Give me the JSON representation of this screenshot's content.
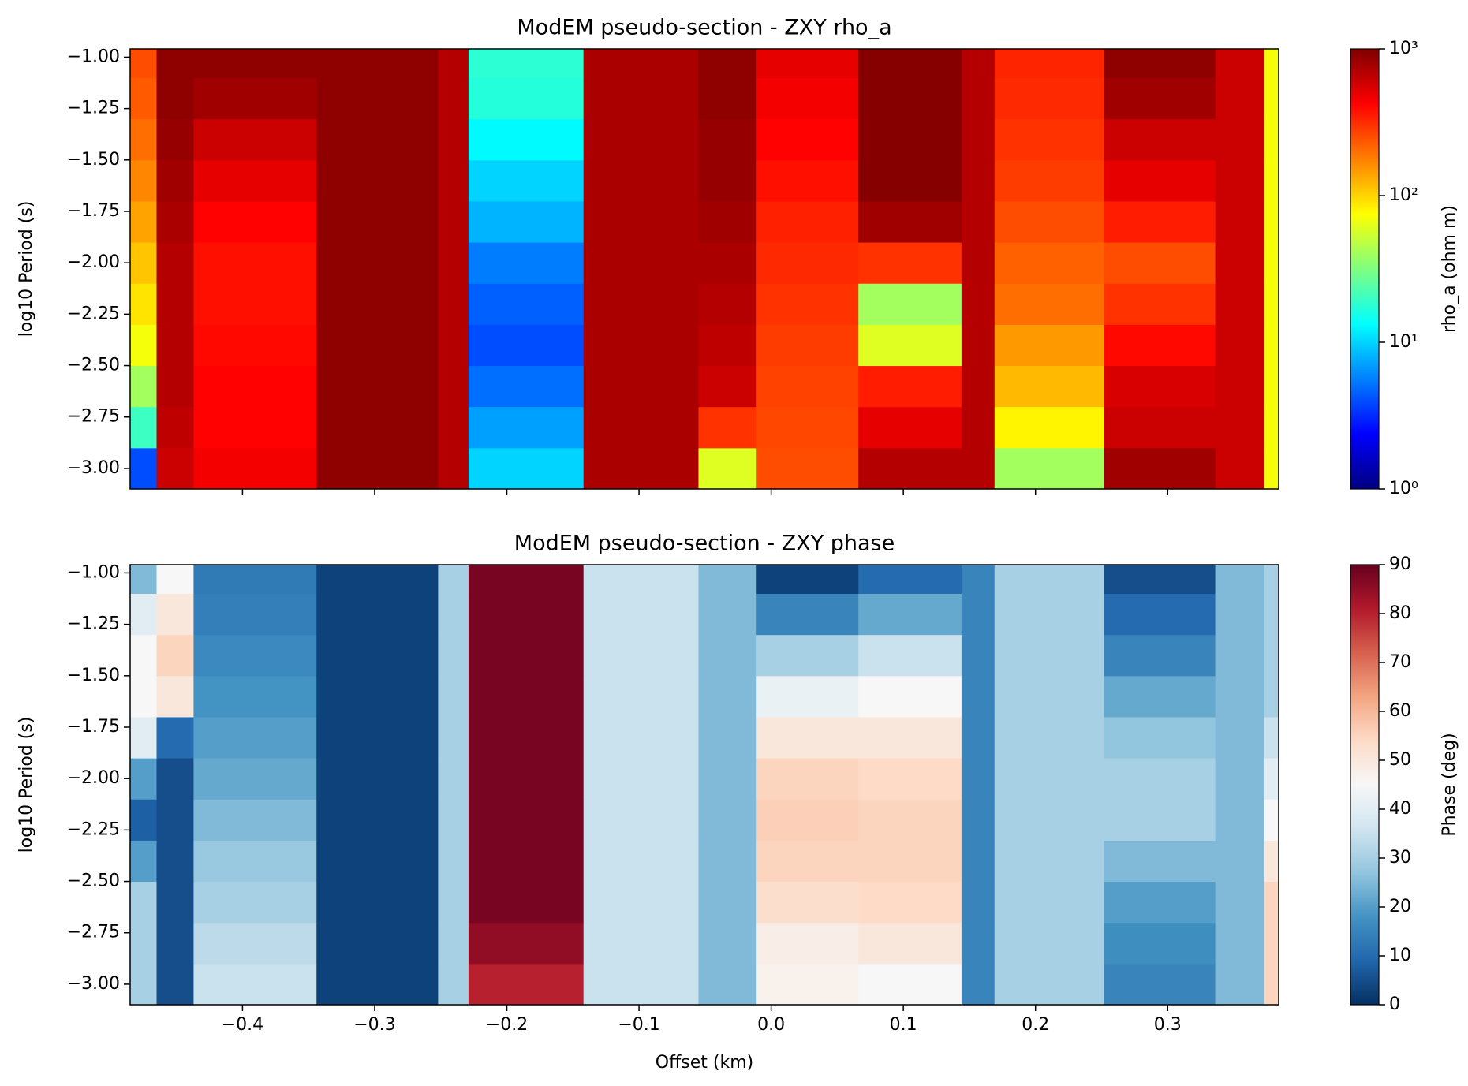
{
  "chart_data": [
    {
      "type": "heatmap",
      "title": "ModEM pseudo-section - ZXY rho_a",
      "ylabel": "log10 Period (s)",
      "x_edges": [
        -0.485,
        -0.465,
        -0.437,
        -0.344,
        -0.252,
        -0.229,
        -0.142,
        -0.055,
        -0.011,
        0.066,
        0.144,
        0.169,
        0.252,
        0.336,
        0.373,
        0.384
      ],
      "y_edges": [
        -3.1,
        -2.9,
        -2.7,
        -2.5,
        -2.3,
        -2.1,
        -1.9,
        -1.7,
        -1.5,
        -1.3,
        -1.1,
        -0.96
      ],
      "z": [
        [
          4,
          600,
          450,
          900,
          700,
          10,
          750,
          60,
          250,
          700,
          700,
          40,
          800,
          600,
          70
        ],
        [
          20,
          650,
          420,
          900,
          700,
          7,
          750,
          300,
          260,
          500,
          700,
          80,
          600,
          600,
          70
        ],
        [
          40,
          700,
          420,
          900,
          700,
          5,
          750,
          600,
          270,
          350,
          700,
          120,
          550,
          600,
          70
        ],
        [
          70,
          700,
          400,
          900,
          700,
          4,
          750,
          650,
          280,
          60,
          700,
          150,
          400,
          600,
          70
        ],
        [
          90,
          700,
          380,
          900,
          700,
          4.5,
          750,
          700,
          300,
          40,
          700,
          200,
          300,
          600,
          70
        ],
        [
          110,
          700,
          380,
          900,
          700,
          5.5,
          750,
          750,
          320,
          300,
          700,
          220,
          250,
          600,
          70
        ],
        [
          140,
          750,
          420,
          900,
          700,
          8,
          750,
          800,
          340,
          800,
          700,
          250,
          350,
          600,
          70
        ],
        [
          170,
          800,
          500,
          900,
          700,
          10,
          750,
          850,
          380,
          950,
          700,
          280,
          500,
          600,
          70
        ],
        [
          200,
          850,
          600,
          900,
          700,
          13,
          750,
          850,
          420,
          950,
          700,
          300,
          600,
          600,
          70
        ],
        [
          230,
          900,
          800,
          900,
          700,
          17,
          750,
          900,
          450,
          950,
          700,
          320,
          800,
          600,
          70
        ],
        [
          250,
          900,
          900,
          900,
          700,
          18,
          750,
          900,
          500,
          950,
          700,
          330,
          900,
          600,
          70
        ]
      ],
      "xlim": [
        -0.485,
        0.384
      ],
      "ylim": [
        -3.1,
        -0.96
      ],
      "yticks": [
        {
          "value": -3.0,
          "label": "−3.00"
        },
        {
          "value": -2.75,
          "label": "−2.75"
        },
        {
          "value": -2.5,
          "label": "−2.50"
        },
        {
          "value": -2.25,
          "label": "−2.25"
        },
        {
          "value": -2.0,
          "label": "−2.00"
        },
        {
          "value": -1.75,
          "label": "−1.75"
        },
        {
          "value": -1.5,
          "label": "−1.50"
        },
        {
          "value": -1.25,
          "label": "−1.25"
        },
        {
          "value": -1.0,
          "label": "−1.00"
        }
      ],
      "colorbar": {
        "label": "rho_a (ohm m)",
        "cmap": "jet",
        "log": true,
        "clim": [
          1,
          1000
        ],
        "ticks": [
          {
            "value": 1,
            "label": "10⁰"
          },
          {
            "value": 10,
            "label": "10¹"
          },
          {
            "value": 100,
            "label": "10²"
          },
          {
            "value": 1000,
            "label": "10³"
          }
        ]
      }
    },
    {
      "type": "heatmap",
      "title": "ModEM pseudo-section - ZXY phase",
      "ylabel": "log10 Period (s)",
      "xlabel": "Offset (km)",
      "x_edges": [
        -0.485,
        -0.465,
        -0.437,
        -0.344,
        -0.252,
        -0.229,
        -0.142,
        -0.055,
        -0.011,
        0.066,
        0.144,
        0.169,
        0.252,
        0.336,
        0.373,
        0.384
      ],
      "y_edges": [
        -3.1,
        -2.9,
        -2.7,
        -2.5,
        -2.3,
        -2.1,
        -1.9,
        -1.7,
        -1.5,
        -1.3,
        -1.1,
        -0.96
      ],
      "z": [
        [
          30,
          5,
          35,
          3,
          30,
          80,
          35,
          25,
          47,
          45,
          15,
          30,
          15,
          25,
          55
        ],
        [
          30,
          5,
          33,
          3,
          30,
          85,
          35,
          25,
          48,
          50,
          15,
          30,
          17,
          25,
          55
        ],
        [
          30,
          5,
          30,
          3,
          30,
          88,
          35,
          25,
          53,
          54,
          15,
          30,
          20,
          25,
          55
        ],
        [
          20,
          5,
          28,
          3,
          30,
          88,
          35,
          25,
          55,
          55,
          15,
          30,
          25,
          25,
          50
        ],
        [
          8,
          5,
          25,
          3,
          30,
          88,
          35,
          25,
          56,
          55,
          15,
          30,
          30,
          25,
          45
        ],
        [
          20,
          5,
          22,
          3,
          30,
          88,
          35,
          25,
          55,
          54,
          15,
          30,
          30,
          25,
          40
        ],
        [
          40,
          10,
          20,
          3,
          30,
          88,
          35,
          25,
          50,
          50,
          15,
          30,
          27,
          25,
          35
        ],
        [
          45,
          50,
          18,
          3,
          30,
          88,
          35,
          25,
          42,
          45,
          15,
          30,
          22,
          25,
          30
        ],
        [
          45,
          55,
          16,
          3,
          30,
          88,
          35,
          25,
          30,
          35,
          15,
          30,
          15,
          25,
          30
        ],
        [
          40,
          50,
          14,
          3,
          30,
          88,
          35,
          25,
          15,
          22,
          15,
          30,
          10,
          25,
          30
        ],
        [
          25,
          45,
          13,
          3,
          30,
          88,
          35,
          25,
          3,
          10,
          15,
          30,
          5,
          25,
          30
        ]
      ],
      "xlim": [
        -0.485,
        0.384
      ],
      "ylim": [
        -3.1,
        -0.96
      ],
      "xticks": [
        {
          "value": -0.4,
          "label": "−0.4"
        },
        {
          "value": -0.3,
          "label": "−0.3"
        },
        {
          "value": -0.2,
          "label": "−0.2"
        },
        {
          "value": -0.1,
          "label": "−0.1"
        },
        {
          "value": 0.0,
          "label": "0.0"
        },
        {
          "value": 0.1,
          "label": "0.1"
        },
        {
          "value": 0.2,
          "label": "0.2"
        },
        {
          "value": 0.3,
          "label": "0.3"
        }
      ],
      "yticks": [
        {
          "value": -3.0,
          "label": "−3.00"
        },
        {
          "value": -2.75,
          "label": "−2.75"
        },
        {
          "value": -2.5,
          "label": "−2.50"
        },
        {
          "value": -2.25,
          "label": "−2.25"
        },
        {
          "value": -2.0,
          "label": "−2.00"
        },
        {
          "value": -1.75,
          "label": "−1.75"
        },
        {
          "value": -1.5,
          "label": "−1.50"
        },
        {
          "value": -1.25,
          "label": "−1.25"
        },
        {
          "value": -1.0,
          "label": "−1.00"
        }
      ],
      "colorbar": {
        "label": "Phase (deg)",
        "cmap": "RdBu_r",
        "log": false,
        "clim": [
          0,
          90
        ],
        "ticks": [
          0,
          10,
          20,
          30,
          40,
          50,
          60,
          70,
          80,
          90
        ]
      }
    }
  ]
}
